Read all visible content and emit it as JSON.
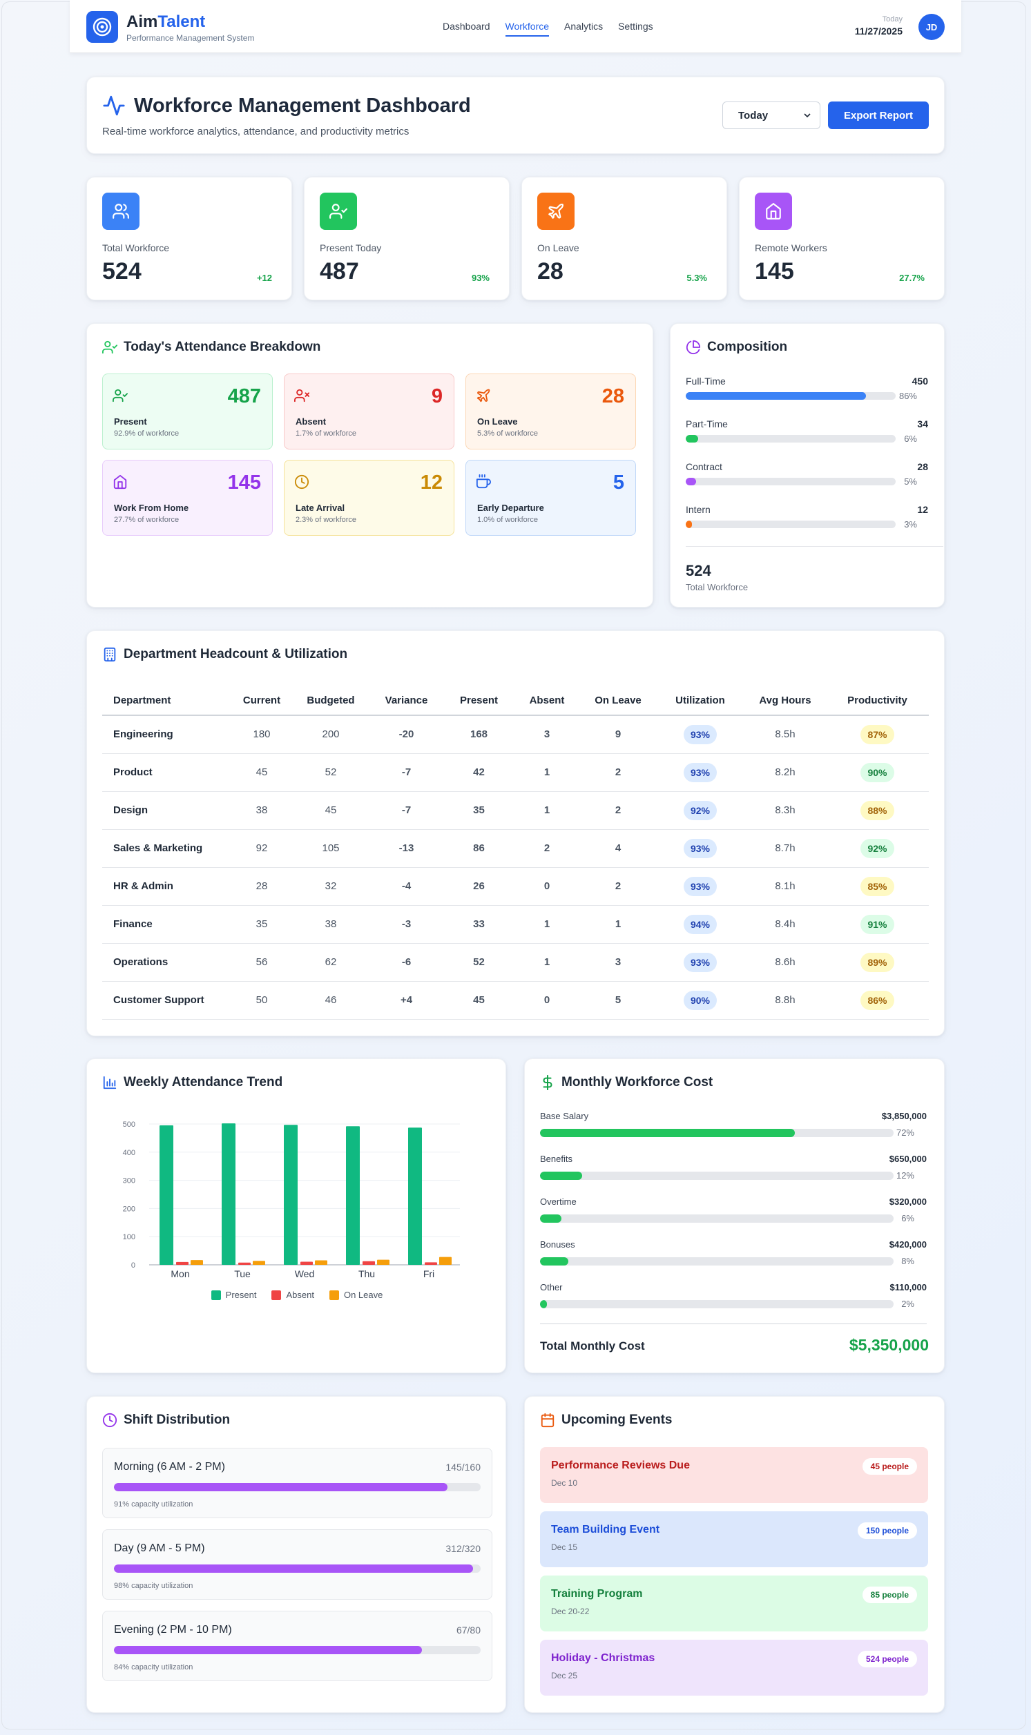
{
  "app": {
    "name_part1": "Aim",
    "name_part2": "Talent",
    "subtitle": "Performance Management System"
  },
  "nav": {
    "items": [
      "Dashboard",
      "Workforce",
      "Analytics",
      "Settings"
    ],
    "active": "Workforce"
  },
  "date": {
    "label": "Today",
    "value": "11/27/2025"
  },
  "user": {
    "initials": "JD"
  },
  "header": {
    "title": "Workforce Management Dashboard",
    "subtitle": "Real-time workforce analytics, attendance, and productivity metrics",
    "period_select": "Today",
    "export_label": "Export Report"
  },
  "stats": [
    {
      "label": "Total Workforce",
      "value": "524",
      "change": "+12",
      "icon": "users-icon",
      "color": "#3b82f6"
    },
    {
      "label": "Present Today",
      "value": "487",
      "change": "93%",
      "icon": "user-check-icon",
      "color": "#22c55e"
    },
    {
      "label": "On Leave",
      "value": "28",
      "change": "5.3%",
      "icon": "plane-icon",
      "color": "#f97316"
    },
    {
      "label": "Remote Workers",
      "value": "145",
      "change": "27.7%",
      "icon": "home-icon",
      "color": "#a855f7"
    }
  ],
  "attendance": {
    "title": "Today's Attendance Breakdown",
    "tiles": [
      {
        "label": "Present",
        "value": "487",
        "sub": "92.9% of workforce",
        "icon": "user-check-icon"
      },
      {
        "label": "Absent",
        "value": "9",
        "sub": "1.7% of workforce",
        "icon": "user-x-icon"
      },
      {
        "label": "On Leave",
        "value": "28",
        "sub": "5.3% of workforce",
        "icon": "plane-icon"
      },
      {
        "label": "Work From Home",
        "value": "145",
        "sub": "27.7% of workforce",
        "icon": "home-icon"
      },
      {
        "label": "Late Arrival",
        "value": "12",
        "sub": "2.3% of workforce",
        "icon": "clock-icon"
      },
      {
        "label": "Early Departure",
        "value": "5",
        "sub": "1.0% of workforce",
        "icon": "coffee-icon"
      }
    ]
  },
  "composition": {
    "title": "Composition",
    "items": [
      {
        "name": "Full-Time",
        "count": "450",
        "pct": "86%",
        "fraction": 0.86,
        "color": "#3b82f6"
      },
      {
        "name": "Part-Time",
        "count": "34",
        "pct": "6%",
        "fraction": 0.06,
        "color": "#22c55e"
      },
      {
        "name": "Contract",
        "count": "28",
        "pct": "5%",
        "fraction": 0.05,
        "color": "#a855f7"
      },
      {
        "name": "Intern",
        "count": "12",
        "pct": "3%",
        "fraction": 0.03,
        "color": "#f97316"
      }
    ],
    "total": "524",
    "total_label": "Total Workforce"
  },
  "departments": {
    "title": "Department Headcount & Utilization",
    "columns": [
      "Department",
      "Current",
      "Budgeted",
      "Variance",
      "Present",
      "Absent",
      "On Leave",
      "Utilization",
      "Avg Hours",
      "Productivity"
    ],
    "rows": [
      [
        "Engineering",
        "180",
        "200",
        "-20",
        "168",
        "3",
        "9",
        "93%",
        "8.5h",
        "87%"
      ],
      [
        "Product",
        "45",
        "52",
        "-7",
        "42",
        "1",
        "2",
        "93%",
        "8.2h",
        "90%"
      ],
      [
        "Design",
        "38",
        "45",
        "-7",
        "35",
        "1",
        "2",
        "92%",
        "8.3h",
        "88%"
      ],
      [
        "Sales & Marketing",
        "92",
        "105",
        "-13",
        "86",
        "2",
        "4",
        "93%",
        "8.7h",
        "92%"
      ],
      [
        "HR & Admin",
        "28",
        "32",
        "-4",
        "26",
        "0",
        "2",
        "93%",
        "8.1h",
        "85%"
      ],
      [
        "Finance",
        "35",
        "38",
        "-3",
        "33",
        "1",
        "1",
        "94%",
        "8.4h",
        "91%"
      ],
      [
        "Operations",
        "56",
        "62",
        "-6",
        "52",
        "1",
        "3",
        "93%",
        "8.6h",
        "89%"
      ],
      [
        "Customer Support",
        "50",
        "46",
        "+4",
        "45",
        "0",
        "5",
        "90%",
        "8.8h",
        "86%"
      ]
    ]
  },
  "weekly_trend": {
    "title": "Weekly Attendance Trend"
  },
  "chart_data": {
    "type": "bar",
    "categories": [
      "Mon",
      "Tue",
      "Wed",
      "Thu",
      "Fri"
    ],
    "series": [
      {
        "name": "Present",
        "values": [
          495,
          502,
          497,
          492,
          487
        ],
        "color": "#10b981"
      },
      {
        "name": "Absent",
        "values": [
          10,
          8,
          11,
          13,
          9
        ],
        "color": "#ef4444"
      },
      {
        "name": "On Leave",
        "values": [
          17,
          14,
          16,
          18,
          28
        ],
        "color": "#f59e0b"
      }
    ],
    "ylim": [
      0,
      500
    ],
    "yticks": [
      0,
      100,
      200,
      300,
      400,
      500
    ],
    "grid": true,
    "legend": "bottom"
  },
  "cost": {
    "title": "Monthly Workforce Cost",
    "items": [
      {
        "name": "Base Salary",
        "amount": "$3,850,000",
        "pct": "72%",
        "fraction": 0.72
      },
      {
        "name": "Benefits",
        "amount": "$650,000",
        "pct": "12%",
        "fraction": 0.12
      },
      {
        "name": "Overtime",
        "amount": "$320,000",
        "pct": "6%",
        "fraction": 0.06
      },
      {
        "name": "Bonuses",
        "amount": "$420,000",
        "pct": "8%",
        "fraction": 0.08
      },
      {
        "name": "Other",
        "amount": "$110,000",
        "pct": "2%",
        "fraction": 0.02
      }
    ],
    "total_label": "Total Monthly Cost",
    "total_value": "$5,350,000"
  },
  "shifts": {
    "title": "Shift Distribution",
    "items": [
      {
        "name": "Morning (6 AM - 2 PM)",
        "count": "145/160",
        "sub": "91% capacity utilization",
        "fraction": 0.91
      },
      {
        "name": "Day (9 AM - 5 PM)",
        "count": "312/320",
        "sub": "98% capacity utilization",
        "fraction": 0.98
      },
      {
        "name": "Evening (2 PM - 10 PM)",
        "count": "67/80",
        "sub": "84% capacity utilization",
        "fraction": 0.84
      }
    ]
  },
  "events": {
    "title": "Upcoming Events",
    "items": [
      {
        "name": "Performance Reviews Due",
        "date": "Dec 10",
        "badge": "45 people",
        "bg": "#fde2e2",
        "color": "#b91c1c"
      },
      {
        "name": "Team Building Event",
        "date": "Dec 15",
        "badge": "150 people",
        "bg": "#dbe7fc",
        "color": "#1d4ed8"
      },
      {
        "name": "Training Program",
        "date": "Dec 20-22",
        "badge": "85 people",
        "bg": "#dcfce5",
        "color": "#15803d"
      },
      {
        "name": "Holiday - Christmas",
        "date": "Dec 25",
        "badge": "524 people",
        "bg": "#efe4fc",
        "color": "#7e22ce"
      }
    ]
  }
}
